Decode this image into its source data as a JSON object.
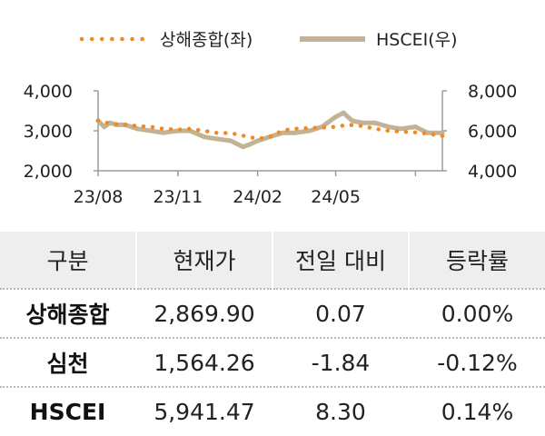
{
  "chart_data": {
    "type": "line",
    "legend": [
      "상해종합(좌)",
      "HSCEI(우)"
    ],
    "legend_position": "top",
    "x_ticks": [
      "23/08",
      "23/11",
      "24/02",
      "24/05"
    ],
    "y_left": {
      "ticks": [
        "2,000",
        "3,000",
        "4,000"
      ],
      "range": [
        2000,
        4000
      ]
    },
    "y_right": {
      "ticks": [
        "4,000",
        "6,000",
        "8,000"
      ],
      "range": [
        4000,
        8000
      ]
    },
    "series": [
      {
        "name": "상해종합(좌)",
        "axis": "left",
        "style": "dotted",
        "color": "#f08a24",
        "x": [
          "2023-08-01",
          "2023-08-15",
          "2023-09-01",
          "2023-09-15",
          "2023-10-01",
          "2023-10-15",
          "2023-11-01",
          "2023-11-15",
          "2023-12-01",
          "2023-12-15",
          "2024-01-01",
          "2024-01-15",
          "2024-02-01",
          "2024-02-15",
          "2024-03-01",
          "2024-03-15",
          "2024-04-01",
          "2024-04-15",
          "2024-05-01",
          "2024-05-15",
          "2024-06-01",
          "2024-06-15",
          "2024-07-01",
          "2024-07-15",
          "2024-08-01",
          "2024-08-15",
          "2024-09-01"
        ],
        "y": [
          3260,
          3180,
          3150,
          3120,
          3100,
          3050,
          3030,
          3050,
          3000,
          2950,
          2940,
          2880,
          2800,
          2850,
          3010,
          3050,
          3070,
          3080,
          3100,
          3150,
          3120,
          3050,
          3000,
          2980,
          2960,
          2930,
          2870
        ]
      },
      {
        "name": "HSCEI(우)",
        "axis": "right",
        "style": "solid",
        "color": "#c2b394",
        "x": [
          "2023-08-01",
          "2023-08-08",
          "2023-08-15",
          "2023-08-22",
          "2023-09-01",
          "2023-09-15",
          "2023-10-01",
          "2023-10-15",
          "2023-11-01",
          "2023-11-15",
          "2023-12-01",
          "2023-12-15",
          "2024-01-01",
          "2024-01-15",
          "2024-01-22",
          "2024-02-01",
          "2024-02-15",
          "2024-03-01",
          "2024-03-15",
          "2024-04-01",
          "2024-04-15",
          "2024-05-01",
          "2024-05-10",
          "2024-05-20",
          "2024-06-01",
          "2024-06-15",
          "2024-07-01",
          "2024-07-15",
          "2024-08-01",
          "2024-08-15",
          "2024-09-01"
        ],
        "y": [
          6500,
          6200,
          6400,
          6300,
          6300,
          6100,
          6000,
          5900,
          6000,
          6000,
          5700,
          5600,
          5500,
          5200,
          5300,
          5500,
          5700,
          5900,
          5900,
          6000,
          6200,
          6700,
          6900,
          6500,
          6400,
          6400,
          6200,
          6100,
          6200,
          5900,
          5900
        ]
      }
    ]
  },
  "table": {
    "headers": [
      "구분",
      "현재가",
      "전일 대비",
      "등락률"
    ],
    "rows": [
      [
        "상해종합",
        "2,869.90",
        "0.07",
        "0.00%"
      ],
      [
        "심천",
        "1,564.26",
        "-1.84",
        "-0.12%"
      ],
      [
        "HSCEI",
        "5,941.47",
        "8.30",
        "0.14%"
      ]
    ]
  }
}
